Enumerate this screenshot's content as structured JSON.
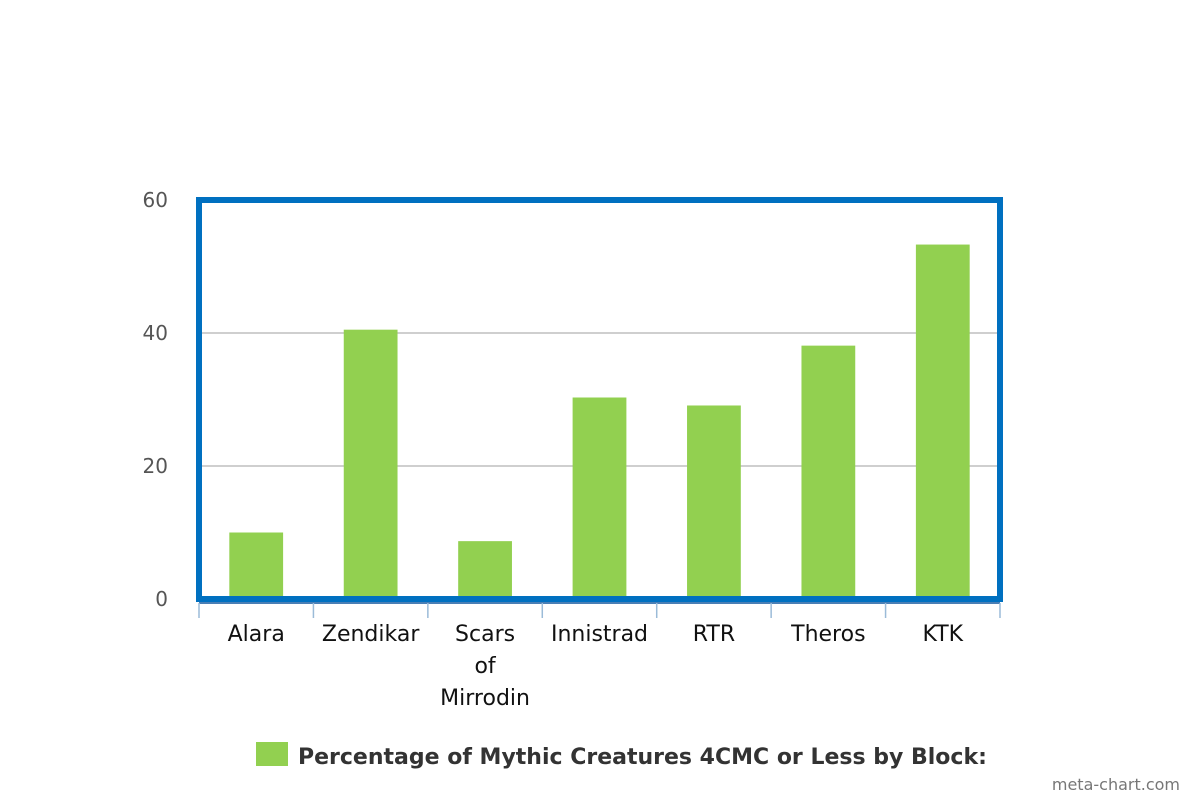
{
  "colors": {
    "bar": "#92d050",
    "frame": "#0070c0",
    "grid": "#bfbfbf",
    "tick_text": "#555555",
    "category_text": "#111111",
    "legend_text": "#333333",
    "credit_text": "#777777"
  },
  "chart_data": {
    "type": "bar",
    "title": "",
    "xlabel": "",
    "ylabel": "",
    "categories": [
      "Alara",
      "Zendikar",
      "Scars of Mirrodin",
      "Innistrad",
      "RTR",
      "Theros",
      "KTK"
    ],
    "category_lines": [
      [
        "Alara"
      ],
      [
        "Zendikar"
      ],
      [
        "Scars",
        "of",
        "Mirrodin"
      ],
      [
        "Innistrad"
      ],
      [
        "RTR"
      ],
      [
        "Theros"
      ],
      [
        "KTK"
      ]
    ],
    "series": [
      {
        "name": "Percentage of Mythic Creatures 4CMC or Less by Block:",
        "values": [
          10,
          40.5,
          8.7,
          30.3,
          29.1,
          38.1,
          53.3
        ]
      }
    ],
    "ylim": [
      0,
      60
    ],
    "yticks": [
      0,
      20,
      40,
      60
    ],
    "grid": true,
    "legend": "bottom-center"
  },
  "credit": "meta-chart.com"
}
